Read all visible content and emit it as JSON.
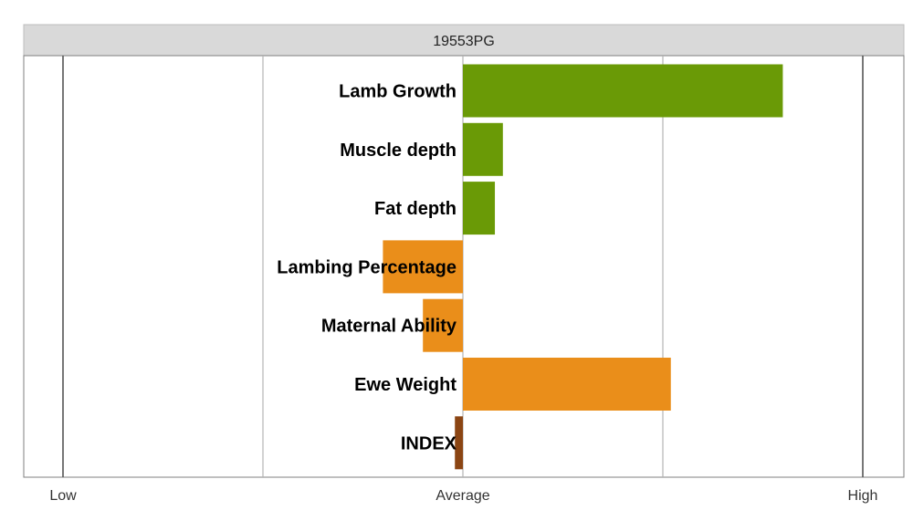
{
  "chart_data": {
    "type": "bar",
    "orientation": "horizontal",
    "title": "19553PG",
    "xlabel": "",
    "ylabel": "",
    "xlim": [
      -1,
      1
    ],
    "x_ticks": [
      {
        "value": -1,
        "label": "Low"
      },
      {
        "value": 0,
        "label": "Average"
      },
      {
        "value": 1,
        "label": "High"
      }
    ],
    "grid": true,
    "categories": [
      "Lamb Growth",
      "Muscle depth",
      "Fat depth",
      "Lambing Percentage",
      "Maternal Ability",
      "Ewe Weight",
      "INDEX"
    ],
    "values": [
      0.8,
      0.1,
      0.08,
      -0.2,
      -0.1,
      0.52,
      -0.02
    ],
    "colors": [
      "#6a9a06",
      "#6a9a06",
      "#6a9a06",
      "#ea8e1a",
      "#ea8e1a",
      "#ea8e1a",
      "#8b4513"
    ]
  }
}
